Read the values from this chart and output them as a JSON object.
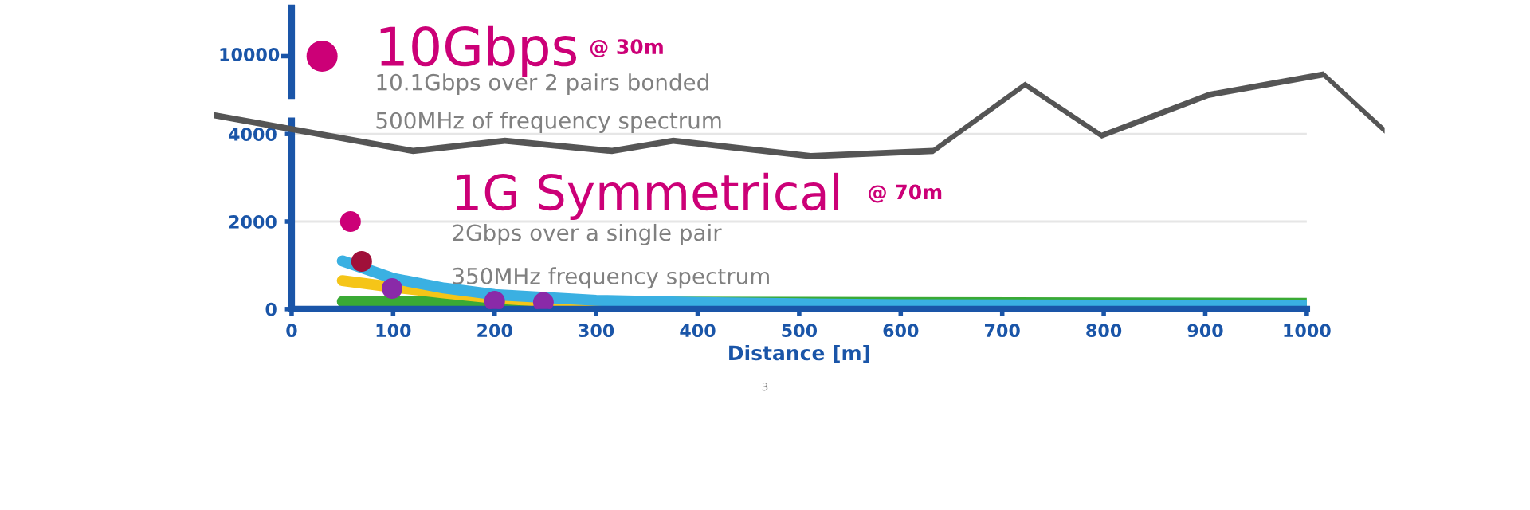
{
  "chart_data": [
    {
      "type": "other",
      "color": "#cc0077",
      "annotations": [
        "10Gbps",
        "@ 30m",
        "10.1Gbps over 2 pairs bonded",
        "500MHz of frequency spectrum",
        "10000"
      ]
    },
    {
      "type": "line",
      "xlim": [
        0,
        1000
      ],
      "ylim": [
        0,
        4300
      ],
      "yticks": [
        0,
        2000,
        4000
      ],
      "xticks": [
        0,
        100,
        200,
        300,
        400,
        500,
        600,
        700,
        800,
        900,
        1000
      ],
      "grid": "y",
      "xlabel": "Distance [m]",
      "annotations": [
        "1G Symmetrical",
        "@ 70m",
        "2Gbps over a single pair",
        "350MHz frequency spectrum",
        "3"
      ],
      "series": [
        {
          "color": "#3aaa35",
          "x": [
            50,
            300,
            600,
            1000
          ],
          "values": [
            170,
            160,
            150,
            130
          ]
        },
        {
          "color": "#f5c518",
          "x": [
            50,
            100,
            150,
            200,
            300
          ],
          "values": [
            650,
            500,
            370,
            250,
            100
          ]
        },
        {
          "color": "#3ab0e2",
          "x": [
            50,
            100,
            150,
            200,
            300,
            400,
            500,
            600,
            800,
            1000
          ],
          "values": [
            1100,
            700,
            480,
            330,
            200,
            150,
            120,
            100,
            90,
            80
          ]
        },
        {
          "type": "scatter",
          "color": "#cc0077",
          "x": [
            58
          ],
          "values": [
            2000
          ]
        },
        {
          "type": "scatter",
          "color": "#a0103a",
          "x": [
            69
          ],
          "values": [
            1090
          ]
        },
        {
          "type": "scatter",
          "color": "#8a2aa8",
          "x": [
            99,
            200,
            248
          ],
          "values": [
            470,
            180,
            150
          ]
        }
      ]
    }
  ]
}
